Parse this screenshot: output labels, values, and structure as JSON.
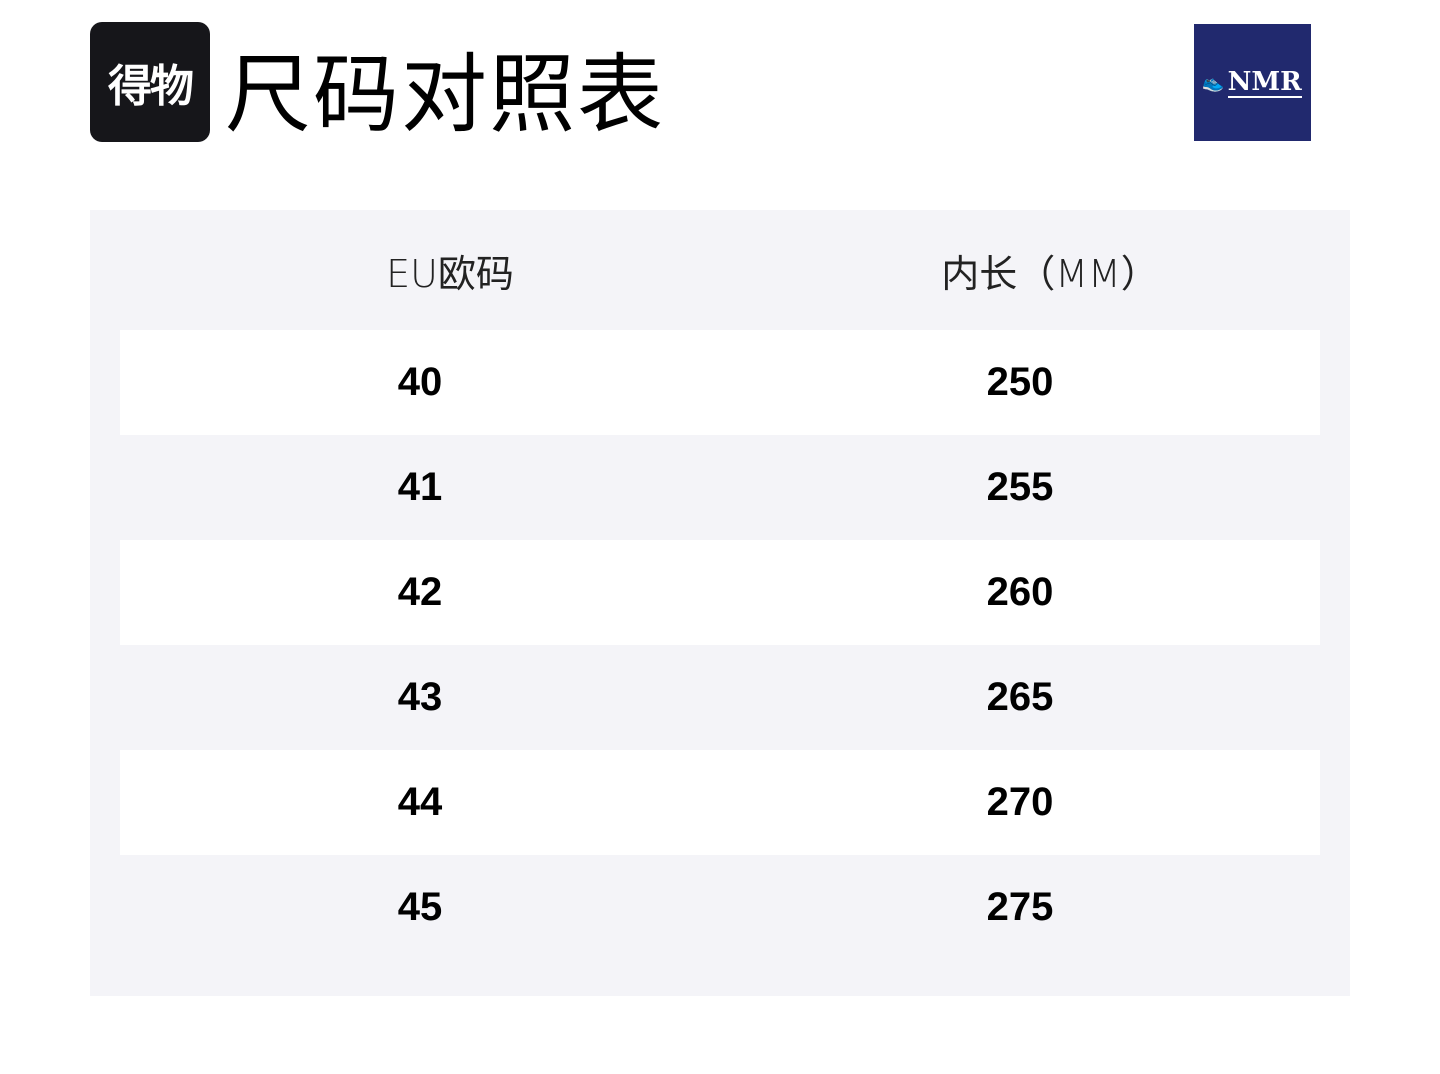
{
  "header": {
    "logo_text": "得物",
    "title": "尺码对照表",
    "brand_logo": "NMR",
    "brand_color": "#21296e"
  },
  "table": {
    "columns": [
      "EU欧码",
      "内长（MM）"
    ],
    "rows": [
      [
        "40",
        "250"
      ],
      [
        "41",
        "255"
      ],
      [
        "42",
        "260"
      ],
      [
        "43",
        "265"
      ],
      [
        "44",
        "270"
      ],
      [
        "45",
        "275"
      ]
    ]
  }
}
